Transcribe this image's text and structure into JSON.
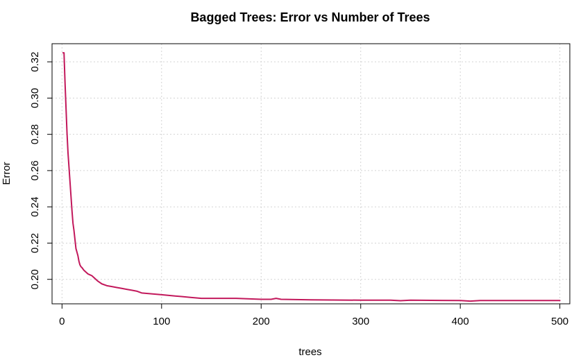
{
  "chart_data": {
    "type": "line",
    "title": "Bagged Trees: Error vs Number of Trees",
    "xlabel": "trees",
    "ylabel": "Error",
    "xlim": [
      -10,
      510
    ],
    "ylim": [
      0.1865,
      0.33
    ],
    "xticks": [
      0,
      100,
      200,
      300,
      400,
      500
    ],
    "yticks": [
      0.2,
      0.22,
      0.24,
      0.26,
      0.28,
      0.3,
      0.32
    ],
    "grid": true,
    "series": [
      {
        "color": "#C2185B",
        "x": [
          1,
          2,
          3,
          4,
          5,
          6,
          7,
          8,
          9,
          10,
          11,
          12,
          13,
          14,
          15,
          16,
          17,
          18,
          19,
          20,
          22,
          24,
          26,
          28,
          30,
          33,
          36,
          40,
          45,
          50,
          55,
          60,
          65,
          70,
          75,
          80,
          90,
          100,
          110,
          120,
          130,
          140,
          150,
          175,
          200,
          210,
          215,
          220,
          250,
          300,
          330,
          340,
          350,
          400,
          410,
          420,
          450,
          500
        ],
        "y": [
          0.325,
          0.325,
          0.309,
          0.295,
          0.281,
          0.27,
          0.262,
          0.254,
          0.246,
          0.238,
          0.231,
          0.227,
          0.222,
          0.217,
          0.215,
          0.213,
          0.21,
          0.208,
          0.207,
          0.2065,
          0.205,
          0.204,
          0.203,
          0.2025,
          0.202,
          0.2005,
          0.199,
          0.1975,
          0.1965,
          0.196,
          0.1955,
          0.195,
          0.1945,
          0.194,
          0.1935,
          0.1925,
          0.192,
          0.1915,
          0.191,
          0.1905,
          0.19,
          0.1895,
          0.1895,
          0.1895,
          0.189,
          0.189,
          0.1895,
          0.189,
          0.1887,
          0.1885,
          0.1885,
          0.1882,
          0.1885,
          0.1883,
          0.188,
          0.1883,
          0.1883,
          0.1883
        ]
      }
    ]
  }
}
